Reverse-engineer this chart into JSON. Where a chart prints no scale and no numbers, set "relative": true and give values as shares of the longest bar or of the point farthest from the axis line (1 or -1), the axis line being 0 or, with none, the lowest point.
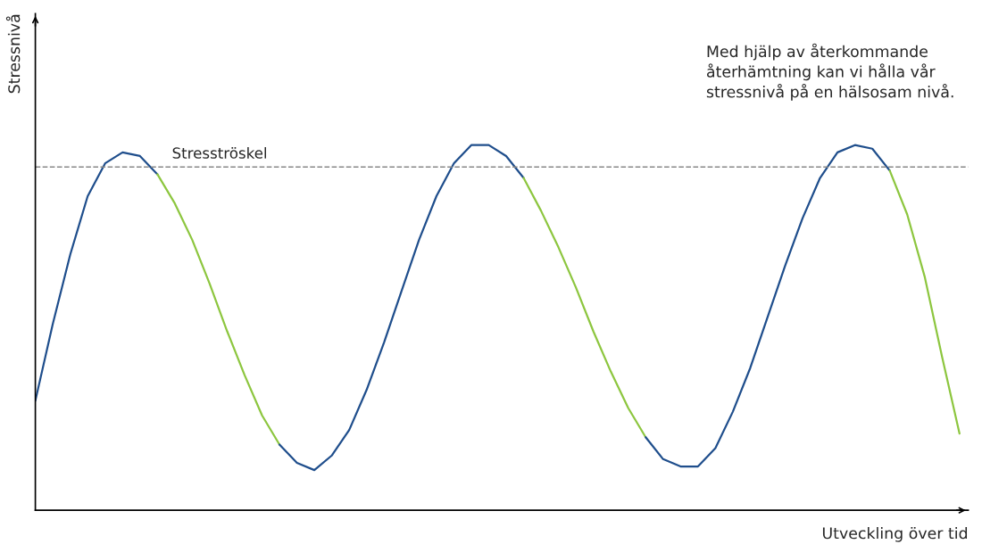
{
  "chart_data": {
    "type": "line",
    "relative": true,
    "xlabel": "Utveckling över tid",
    "ylabel": "Stressnivå",
    "categories": [
      null,
      null,
      null,
      null,
      null,
      null,
      null,
      null,
      null,
      null,
      null,
      null,
      null,
      null,
      null,
      null,
      null,
      null,
      null,
      null,
      null,
      null,
      null,
      null,
      null,
      null,
      null,
      null,
      null,
      null,
      null,
      null,
      null,
      null,
      null,
      null,
      null,
      null,
      null,
      null,
      null,
      null,
      null,
      null,
      null,
      null,
      null,
      null,
      null,
      null,
      null,
      null,
      null,
      null
    ],
    "series": [
      {
        "color": "#1f4e8c",
        "values": [
          0.3,
          0.51,
          0.7,
          0.86,
          0.95,
          0.98,
          0.97,
          0.92,
          null,
          null,
          null,
          null,
          null,
          null,
          null,
          null,
          null,
          null,
          null,
          null,
          null,
          null,
          null,
          null,
          null,
          null,
          null,
          null,
          null,
          null,
          null,
          null,
          null,
          null,
          null,
          null,
          null,
          null,
          null,
          null,
          null,
          null,
          null,
          null,
          null,
          null,
          null,
          null,
          null,
          null,
          null,
          null,
          null,
          null
        ]
      },
      {
        "color": "#8dc63f",
        "values": [
          null,
          null,
          null,
          null,
          null,
          null,
          null,
          0.92,
          0.84,
          0.74,
          0.62,
          0.49,
          0.37,
          0.26,
          0.18,
          null,
          null,
          null,
          null,
          null,
          null,
          null,
          null,
          null,
          null,
          null,
          null,
          null,
          null,
          null,
          null,
          null,
          null,
          null,
          null,
          null,
          null,
          null,
          null,
          null,
          null,
          null,
          null,
          null,
          null,
          null,
          null,
          null,
          null,
          null,
          null,
          null,
          null,
          null
        ]
      },
      {
        "color": "#1f4e8c",
        "values": [
          null,
          null,
          null,
          null,
          null,
          null,
          null,
          null,
          null,
          null,
          null,
          null,
          null,
          null,
          0.18,
          0.13,
          0.11,
          0.15,
          0.22,
          0.33,
          0.46,
          0.6,
          0.74,
          0.86,
          0.95,
          1.0,
          1.0,
          0.97,
          0.91,
          null,
          null,
          null,
          null,
          null,
          null,
          null,
          null,
          null,
          null,
          null,
          null,
          null,
          null,
          null,
          null,
          null,
          null,
          null,
          null,
          null,
          null,
          null,
          null,
          null
        ]
      },
      {
        "color": "#8dc63f",
        "values": [
          null,
          null,
          null,
          null,
          null,
          null,
          null,
          null,
          null,
          null,
          null,
          null,
          null,
          null,
          null,
          null,
          null,
          null,
          null,
          null,
          null,
          null,
          null,
          null,
          null,
          null,
          null,
          null,
          0.91,
          0.82,
          0.72,
          0.61,
          0.49,
          0.38,
          0.28,
          0.2,
          null,
          null,
          null,
          null,
          null,
          null,
          null,
          null,
          null,
          null,
          null,
          null,
          null,
          null,
          null,
          null,
          null,
          null
        ]
      },
      {
        "color": "#1f4e8c",
        "values": [
          null,
          null,
          null,
          null,
          null,
          null,
          null,
          null,
          null,
          null,
          null,
          null,
          null,
          null,
          null,
          null,
          null,
          null,
          null,
          null,
          null,
          null,
          null,
          null,
          null,
          null,
          null,
          null,
          null,
          null,
          null,
          null,
          null,
          null,
          null,
          0.2,
          0.14,
          0.12,
          0.12,
          0.17,
          0.27,
          0.39,
          0.53,
          0.67,
          0.8,
          0.91,
          0.98,
          1.0,
          0.99,
          0.93,
          null,
          null,
          null,
          null
        ]
      },
      {
        "color": "#8dc63f",
        "values": [
          null,
          null,
          null,
          null,
          null,
          null,
          null,
          null,
          null,
          null,
          null,
          null,
          null,
          null,
          null,
          null,
          null,
          null,
          null,
          null,
          null,
          null,
          null,
          null,
          null,
          null,
          null,
          null,
          null,
          null,
          null,
          null,
          null,
          null,
          null,
          null,
          null,
          null,
          null,
          null,
          null,
          null,
          null,
          null,
          null,
          null,
          null,
          null,
          null,
          0.93,
          0.81,
          0.64,
          0.42,
          0.21
        ]
      }
    ],
    "ref_lines": [
      {
        "axis": "y",
        "value": 0.94,
        "label": "Stresströskel",
        "color": "#888888",
        "line_style": "dashed"
      }
    ],
    "annotations": [
      "Med hjälp av återkommande\nåterhämtning kan vi hålla vår\nstressnivå på en hälsosam nivå."
    ],
    "legend": false,
    "grid": false
  }
}
